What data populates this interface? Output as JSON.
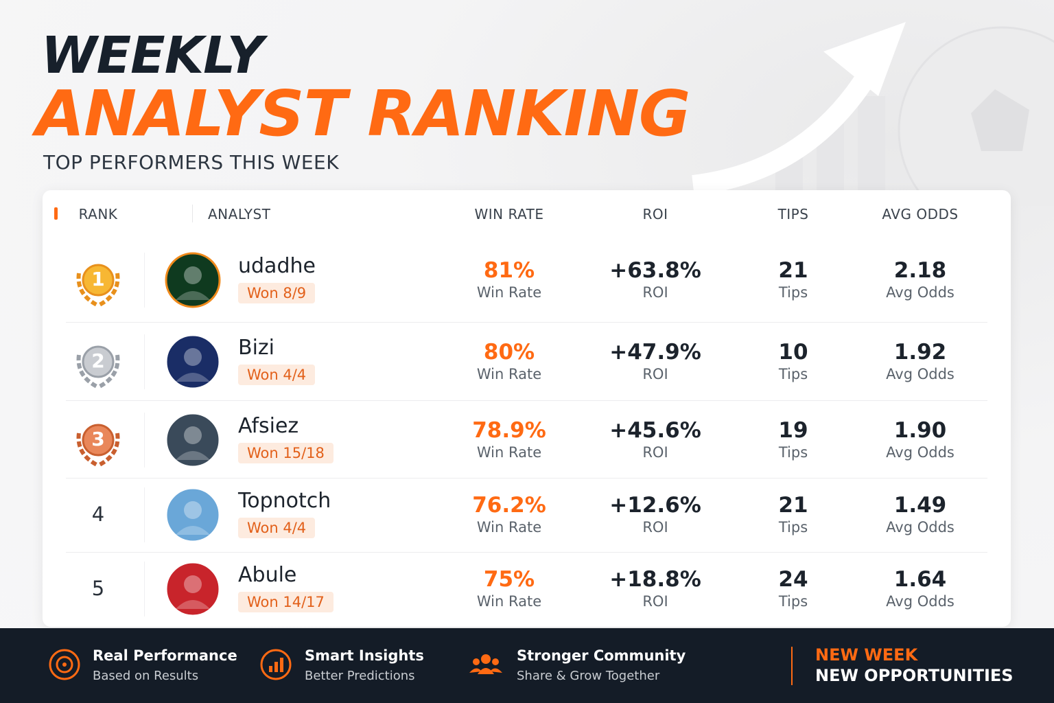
{
  "header": {
    "title_line1": "WEEKLY",
    "title_line2": "ANALYST RANKING",
    "subtitle": "TOP PERFORMERS THIS WEEK"
  },
  "table": {
    "columns": [
      "RANK",
      "ANALYST",
      "WIN RATE",
      "ROI",
      "TIPS",
      "AVG ODDS"
    ],
    "rows": [
      {
        "rank": "1",
        "analyst": "udadhe",
        "record": "Won 8/9",
        "win_rate": "81%",
        "win_rate_caption": "Win Rate",
        "roi": "+63.8%",
        "roi_caption": "ROI",
        "tips": "21",
        "tips_caption": "Tips",
        "avg_odds": "2.18",
        "avg_odds_caption": "Avg Odds"
      },
      {
        "rank": "2",
        "analyst": "Bizi",
        "record": "Won 4/4",
        "win_rate": "80%",
        "win_rate_caption": "Win Rate",
        "roi": "+47.9%",
        "roi_caption": "ROI",
        "tips": "10",
        "tips_caption": "Tips",
        "avg_odds": "1.92",
        "avg_odds_caption": "Avg Odds"
      },
      {
        "rank": "3",
        "analyst": "Afsiez",
        "record": "Won 15/18",
        "win_rate": "78.9%",
        "win_rate_caption": "Win Rate",
        "roi": "+45.6%",
        "roi_caption": "ROI",
        "tips": "19",
        "tips_caption": "Tips",
        "avg_odds": "1.90",
        "avg_odds_caption": "Avg Odds"
      },
      {
        "rank": "4",
        "analyst": "Topnotch",
        "record": "Won 4/4",
        "win_rate": "76.2%",
        "win_rate_caption": "Win Rate",
        "roi": "+12.6%",
        "roi_caption": "ROI",
        "tips": "21",
        "tips_caption": "Tips",
        "avg_odds": "1.49",
        "avg_odds_caption": "Avg Odds"
      },
      {
        "rank": "5",
        "analyst": "Abule",
        "record": "Won 14/17",
        "win_rate": "75%",
        "win_rate_caption": "Win Rate",
        "roi": "+18.8%",
        "roi_caption": "ROI",
        "tips": "24",
        "tips_caption": "Tips",
        "avg_odds": "1.64",
        "avg_odds_caption": "Avg Odds"
      }
    ]
  },
  "footer": {
    "features": [
      {
        "title": "Real Performance",
        "subtitle": "Based on Results"
      },
      {
        "title": "Smart Insights",
        "subtitle": "Better Predictions"
      },
      {
        "title": "Stronger Community",
        "subtitle": "Share & Grow Together"
      }
    ],
    "tagline": [
      "NEW WEEK",
      "NEW OPPORTUNITIES"
    ]
  }
}
